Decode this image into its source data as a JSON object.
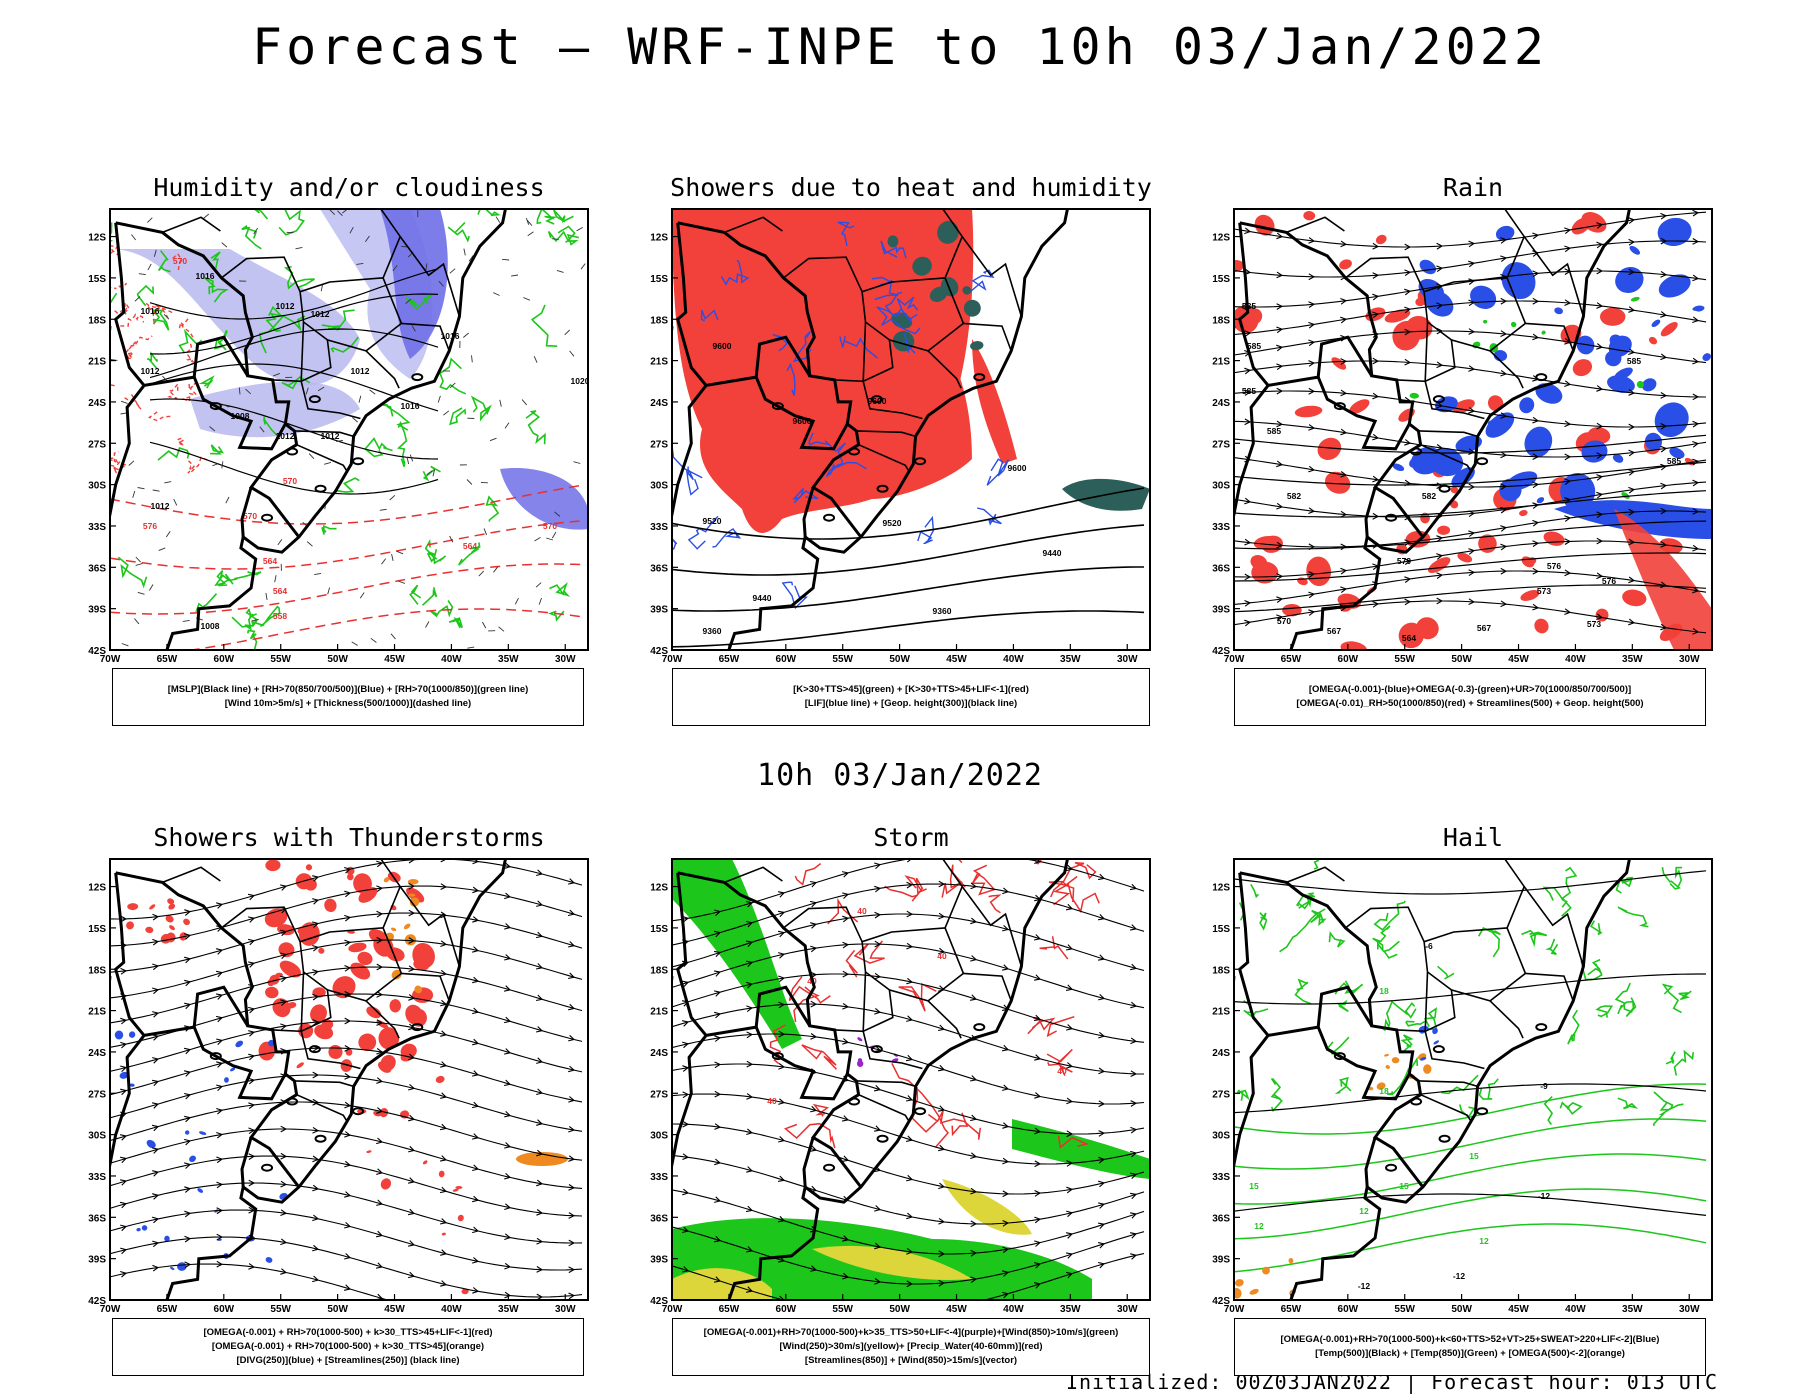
{
  "title": "Forecast — WRF-INPE to 10h 03/Jan/2022",
  "mid_title": "10h 03/Jan/2022",
  "footer": "Initialized: 00Z03JAN2022 | Forecast hour: 013 UTC",
  "colors": {
    "red": "#f2403a",
    "blue": "#2a4fe6",
    "lightblue": "#b8b9f0",
    "green": "#1dc61a",
    "darkgreen": "#2c5f5a",
    "orange": "#ef8a20",
    "yellow": "#dcd63a",
    "purple": "#9a25c8"
  },
  "chart_data": [
    {
      "type": "heatmap",
      "title": "Humidity and/or cloudiness",
      "legend": [
        "[MSLP](Black line) + [RH>70(850/700/500)](Blue) + [RH>70(1000/850)](green line)",
        "[Wind 10m>5m/s] + [Thickness(500/1000)](dashed line)"
      ],
      "xlim": [
        -70,
        -28
      ],
      "ylim": [
        -42,
        -10
      ],
      "x_ticks": [
        "70W",
        "65W",
        "60W",
        "55W",
        "50W",
        "45W",
        "40W",
        "35W",
        "30W"
      ],
      "y_ticks": [
        "12S",
        "15S",
        "18S",
        "21S",
        "24S",
        "27S",
        "30S",
        "33S",
        "36S",
        "39S",
        "42S"
      ],
      "contour_labels": [
        "1016",
        "1012",
        "1012",
        "1012",
        "1008",
        "1012",
        "1012",
        "1016",
        "1016",
        "1020",
        "1016",
        "1012",
        "1012",
        "1008",
        "570",
        "570",
        "564",
        "570",
        "564",
        "558",
        "558",
        "570",
        "576",
        "564"
      ]
    },
    {
      "type": "heatmap",
      "title": "Showers due to heat and humidity",
      "legend": [
        "[K>30+TTS>45](green) + [K>30+TTS>45+LIF<-1](red)",
        "[LIF](blue line) + [Geop. height(300)](black line)"
      ],
      "xlim": [
        -70,
        -28
      ],
      "ylim": [
        -42,
        -10
      ],
      "x_ticks": [
        "70W",
        "65W",
        "60W",
        "55W",
        "50W",
        "45W",
        "40W",
        "35W",
        "30W"
      ],
      "y_ticks": [
        "12S",
        "15S",
        "18S",
        "21S",
        "24S",
        "27S",
        "30S",
        "33S",
        "36S",
        "39S",
        "42S"
      ],
      "contour_labels": [
        "9600",
        "9600",
        "9600",
        "9600",
        "9520",
        "9520",
        "9440",
        "9440",
        "9360",
        "9360"
      ]
    },
    {
      "type": "heatmap",
      "title": "Rain",
      "legend": [
        "[OMEGA(-0.001)-(blue)+OMEGA(-0.3)-(green)+UR>70(1000/850/700/500)]",
        "[OMEGA(-0.01)_RH>50(1000/850)(red) + Streamlines(500) + Geop. height(500)"
      ],
      "xlim": [
        -70,
        -28
      ],
      "ylim": [
        -42,
        -10
      ],
      "x_ticks": [
        "70W",
        "65W",
        "60W",
        "55W",
        "50W",
        "45W",
        "40W",
        "35W",
        "30W"
      ],
      "y_ticks": [
        "12S",
        "15S",
        "18S",
        "21S",
        "24S",
        "27S",
        "30S",
        "33S",
        "36S",
        "39S",
        "42S"
      ],
      "contour_labels": [
        "585",
        "585",
        "585",
        "585",
        "582",
        "582",
        "579",
        "576",
        "573",
        "576",
        "573",
        "570",
        "567",
        "564",
        "567",
        "585",
        "585"
      ]
    },
    {
      "type": "heatmap",
      "title": "Showers with Thunderstorms",
      "legend": [
        "[OMEGA(-0.001) + RH>70(1000-500) + k>30_TTS>45+LIF<-1](red)",
        "[OMEGA(-0.001) + RH>70(1000-500) + k>30_TTS>45](orange)",
        "[DIVG(250)](blue) + [Streamlines(250)] (black line)"
      ],
      "xlim": [
        -70,
        -28
      ],
      "ylim": [
        -42,
        -10
      ],
      "x_ticks": [
        "70W",
        "65W",
        "60W",
        "55W",
        "50W",
        "45W",
        "40W",
        "35W",
        "30W"
      ],
      "y_ticks": [
        "12S",
        "15S",
        "18S",
        "21S",
        "24S",
        "27S",
        "30S",
        "33S",
        "36S",
        "39S",
        "42S"
      ]
    },
    {
      "type": "heatmap",
      "title": "Storm",
      "legend": [
        "[OMEGA(-0.001)+RH>70(1000-500)+k>35_TTS>50+LIF<-4](purple)+[Wind(850)>10m/s](green)",
        "[Wind(250)>30m/s](yellow)+ [Precip_Water(40-60mm)](red)",
        "[Streamlines(850)] + [Wind(850)>15m/s](vector)"
      ],
      "xlim": [
        -70,
        -28
      ],
      "ylim": [
        -42,
        -10
      ],
      "x_ticks": [
        "70W",
        "65W",
        "60W",
        "55W",
        "50W",
        "45W",
        "40W",
        "35W",
        "30W"
      ],
      "y_ticks": [
        "12S",
        "15S",
        "18S",
        "21S",
        "24S",
        "27S",
        "30S",
        "33S",
        "36S",
        "39S",
        "42S"
      ],
      "contour_labels": [
        "40",
        "40",
        "40",
        "40",
        "40"
      ]
    },
    {
      "type": "heatmap",
      "title": "Hail",
      "legend": [
        "[OMEGA(-0.001)+RH>70(1000-500)+k<60+TTS>52+VT>25+SWEAT>220+LIF<-2](Blue)",
        "[Temp(500)](Black) + [Temp(850)](Green) + [OMEGA(500)<-2](orange)"
      ],
      "xlim": [
        -70,
        -28
      ],
      "ylim": [
        -42,
        -10
      ],
      "x_ticks": [
        "70W",
        "65W",
        "60W",
        "55W",
        "50W",
        "45W",
        "40W",
        "35W",
        "30W"
      ],
      "y_ticks": [
        "12S",
        "15S",
        "18S",
        "21S",
        "24S",
        "27S",
        "30S",
        "33S",
        "36S",
        "39S",
        "42S"
      ],
      "contour_labels": [
        "18",
        "18",
        "15",
        "15",
        "15",
        "12",
        "12",
        "12",
        "-6",
        "-9",
        "-12",
        "-12",
        "-12"
      ]
    }
  ]
}
